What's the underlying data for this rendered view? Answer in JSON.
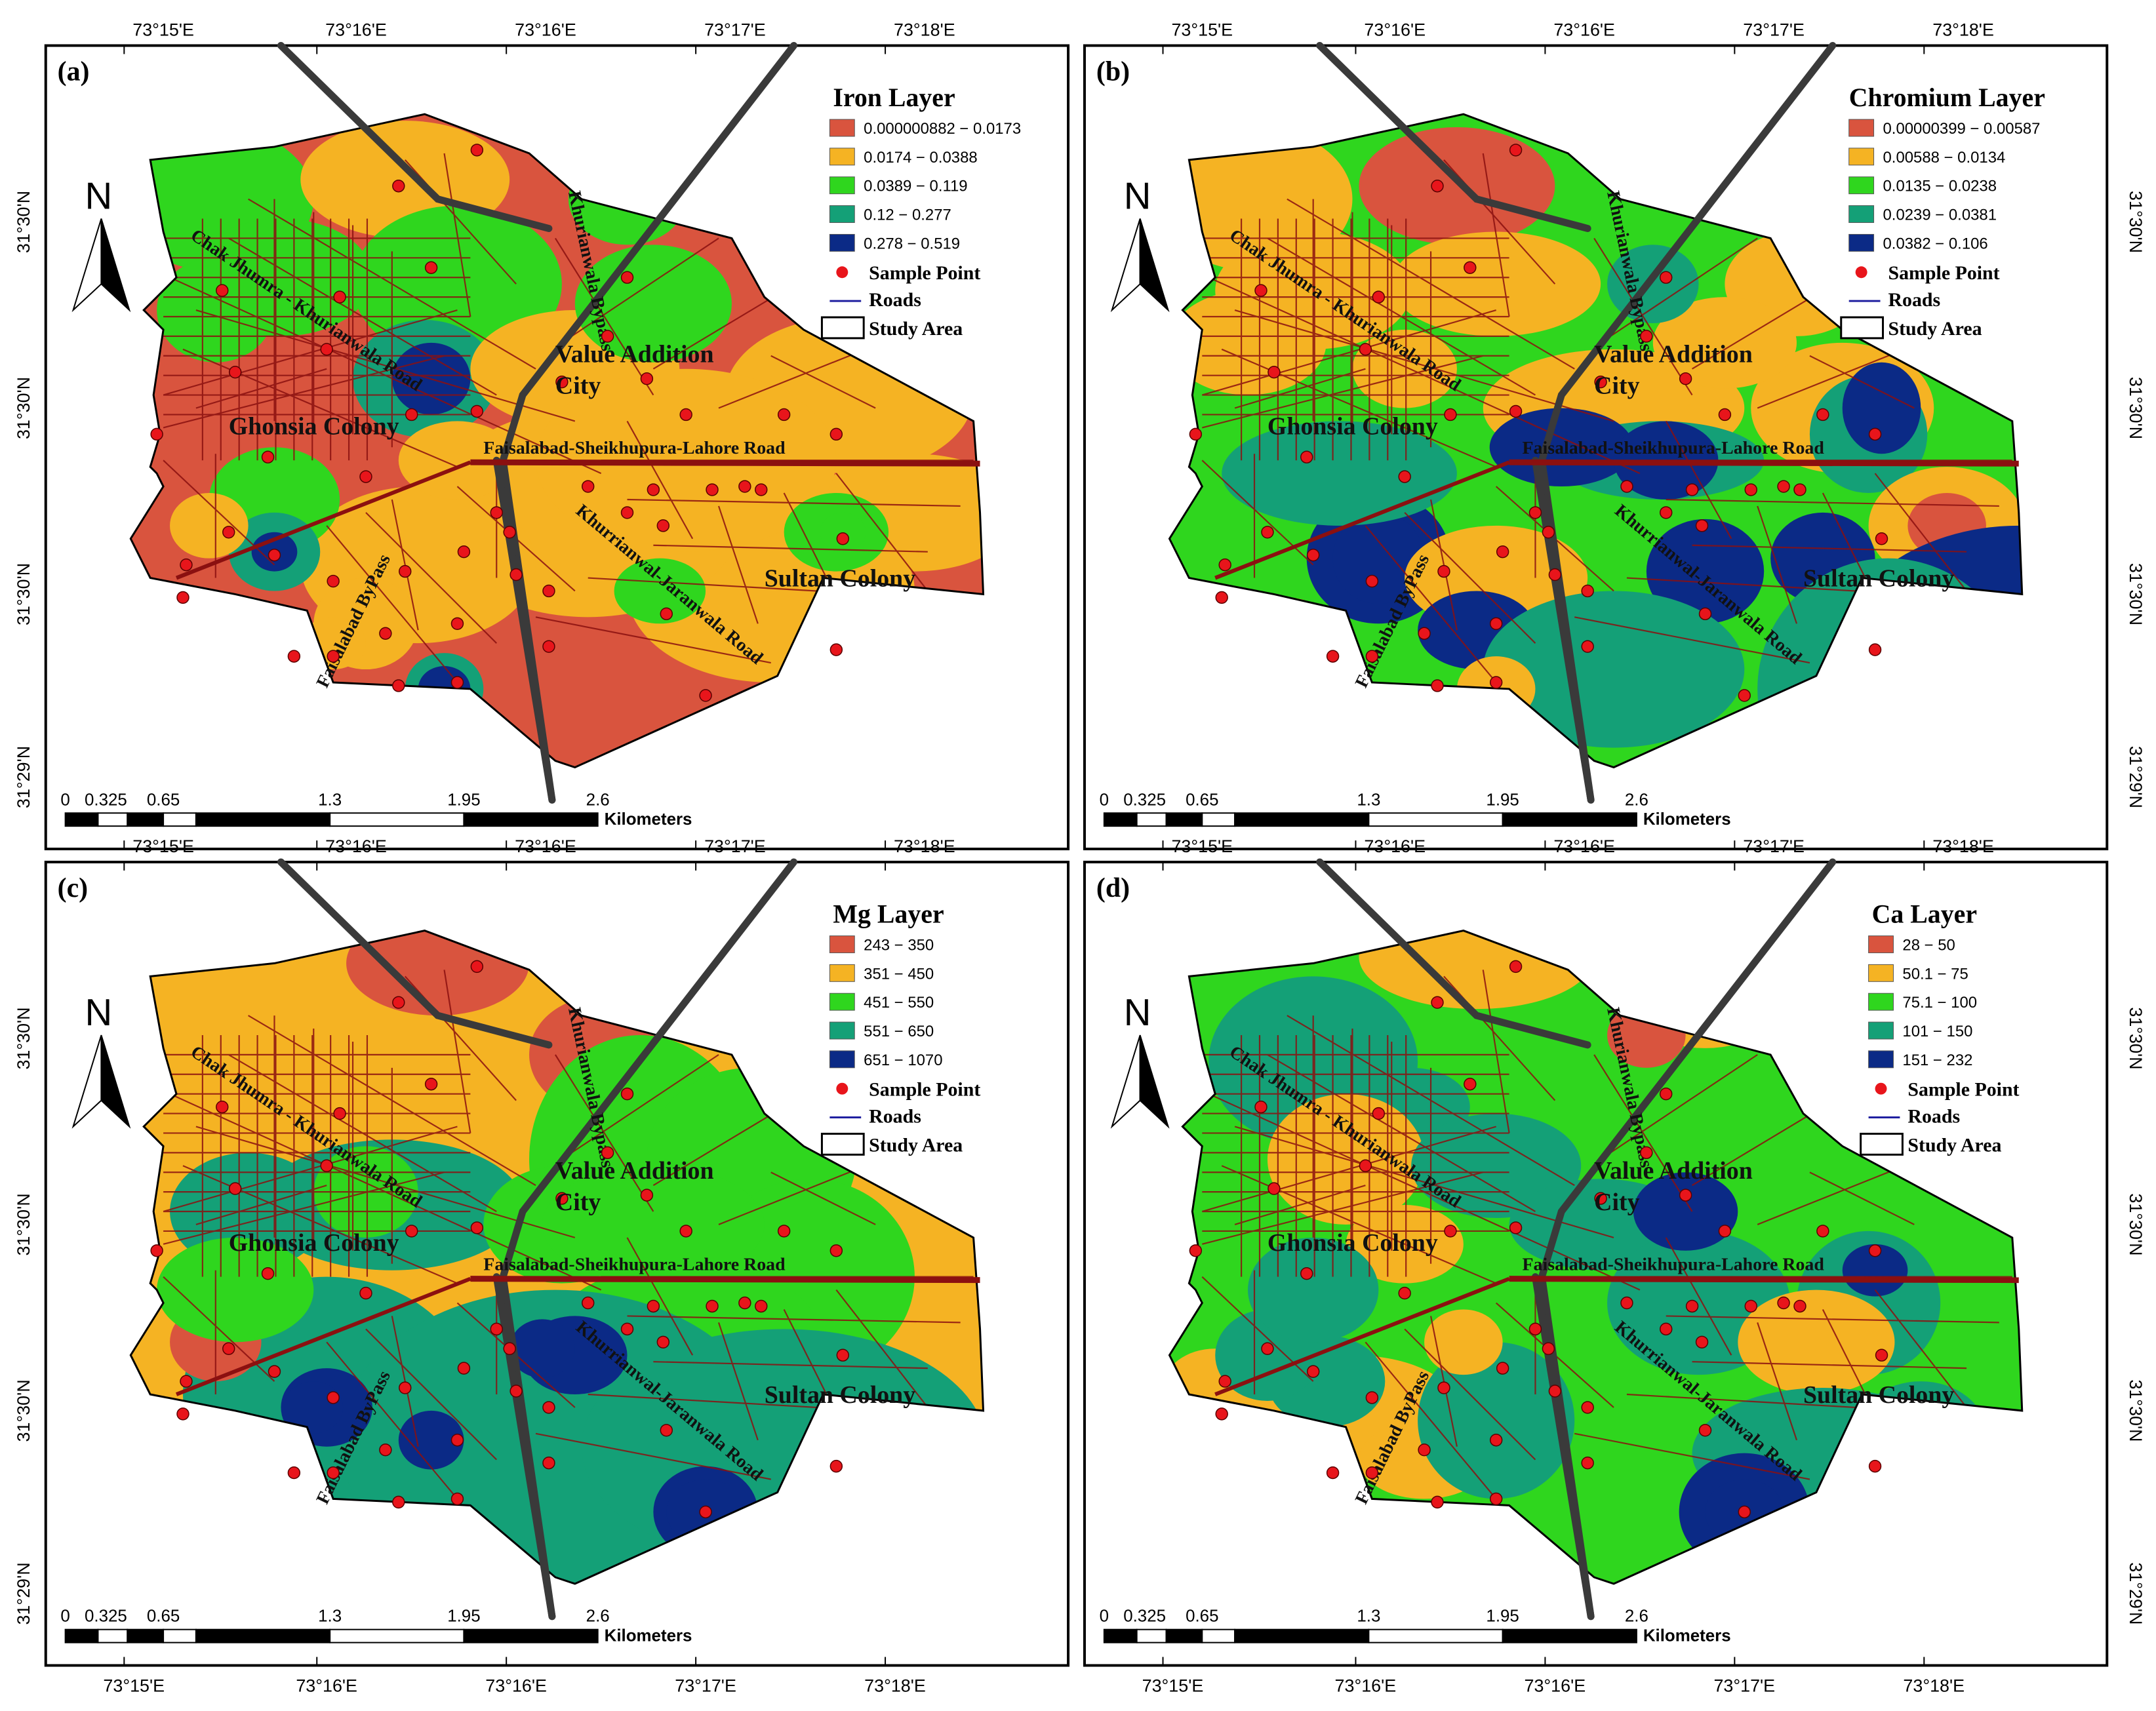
{
  "figure": {
    "colors": {
      "class1": "#d9543e",
      "class2": "#f5b323",
      "class3": "#2fd61e",
      "class4": "#14a077",
      "class5": "#0b2a86",
      "sample": "#e8151b",
      "road": "#8b1010",
      "highway": "#3a3a3a"
    },
    "top_longitudes": [
      "73°15'E",
      "73°16'E",
      "73°16'E",
      "73°17'E",
      "73°18'E"
    ],
    "bottom_longitudes": [
      "73°15'E",
      "73°16'E",
      "73°16'E",
      "73°17'E",
      "73°18'E"
    ],
    "latitudes": [
      "31°30'N",
      "31°30'N",
      "31°30'N",
      "31°29'N"
    ],
    "north_label": "N",
    "place_names": {
      "ghonsia": "Ghonsia Colony",
      "value_addition_1": "Value Addition",
      "value_addition_2": "City",
      "sultan": "Sultan Colony"
    },
    "road_names": {
      "chak": "Chak Jhumra - Khurianwala Road",
      "bypass": "Khurianwala Bypass",
      "fsd_lahore": "Faisalabad-Sheikhupura-Lahore Road",
      "jaranwala": "Khurrianwal-Jaranwala Road",
      "fsd_bypass": "Faisalabad ByPass"
    },
    "scale": {
      "ticks": [
        "0",
        "0.325",
        "0.65",
        "1.3",
        "1.95",
        "2.6"
      ],
      "unit": "Kilometers"
    },
    "legend_common": {
      "sample": "Sample Point",
      "roads": "Roads",
      "study_area": "Study Area"
    },
    "panels": [
      {
        "label": "(a)",
        "title": "Iron Layer",
        "classes": [
          "0.000000882 − 0.0173",
          "0.0174 − 0.0388",
          "0.0389 − 0.119",
          "0.12 − 0.277",
          "0.278 − 0.519"
        ]
      },
      {
        "label": "(b)",
        "title": "Chromium Layer",
        "classes": [
          "0.00000399 − 0.00587",
          "0.00588 − 0.0134",
          "0.0135 − 0.0238",
          "0.0239 − 0.0381",
          "0.0382 − 0.106"
        ]
      },
      {
        "label": "(c)",
        "title": "Mg Layer",
        "classes": [
          "243 − 350",
          "351 − 450",
          "451 − 550",
          "551 − 650",
          "651 − 1070"
        ]
      },
      {
        "label": "(d)",
        "title": "Ca Layer",
        "classes": [
          "28 − 50",
          "50.1 − 75",
          "75.1 − 100",
          "101 − 150",
          "151 − 232"
        ]
      }
    ]
  }
}
